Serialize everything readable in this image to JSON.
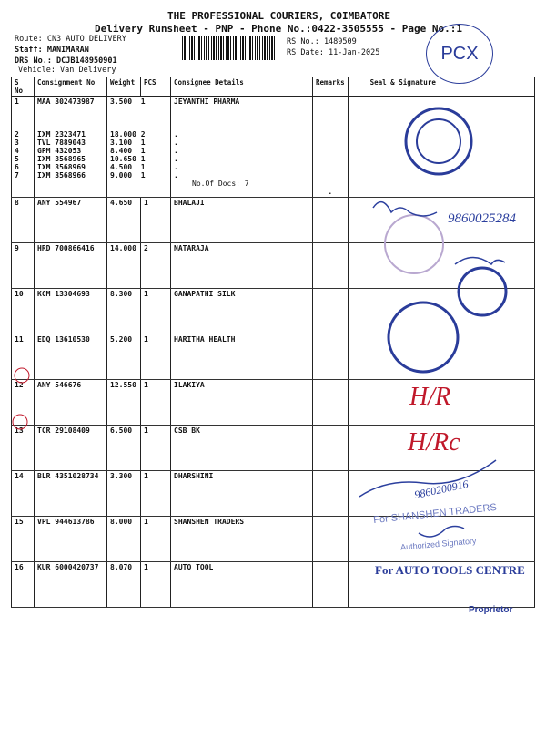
{
  "header": {
    "title": "THE PROFESSIONAL COURIERS, COIMBATORE",
    "subtitle": "Delivery Runsheet - PNP - Phone No.:0422-3505555 - Page No.:1",
    "route": "Route: CN3 AUTO DELIVERY",
    "staff": "Staff: MANIMARAN",
    "drs": "DRS No.: DCJB148950901",
    "vehicle": "Vehicle: Van Delivery",
    "rs_no": "RS No.: 1489509",
    "rs_date": "RS Date: 11-Jan-2025",
    "logo": "PCX"
  },
  "columns": [
    "S No",
    "Consignment No",
    "Weight",
    "PCS",
    "Consignee Details",
    "Remarks",
    "Seal & Signature"
  ],
  "group1": {
    "sno": [
      "1",
      "2",
      "3",
      "4",
      "5",
      "6",
      "7"
    ],
    "consignment": [
      "MAA 302473987",
      "IXM 2323471",
      "TVL 7889043",
      "GPM 432053",
      "IXM 3568965",
      "IXM 3568969",
      "IXM 3568966"
    ],
    "weight": [
      "3.500",
      "18.000",
      "3.100",
      "8.400",
      "10.650",
      "4.500",
      "9.000"
    ],
    "pcs": [
      "1",
      "2",
      "1",
      "1",
      "1",
      "1",
      "1"
    ],
    "consignee": "JEYANTHI PHARMA",
    "dots": [
      ".",
      ".",
      ".",
      ".",
      ".",
      "."
    ],
    "docs": "No.Of Docs: 7",
    "remark": "."
  },
  "rows": [
    {
      "sno": "8",
      "consignment": "ANY 554967",
      "weight": "4.650",
      "pcs": "1",
      "consignee": "BHALAJI"
    },
    {
      "sno": "9",
      "consignment": "HRD 700866416",
      "weight": "14.000",
      "pcs": "2",
      "consignee": "NATARAJA"
    },
    {
      "sno": "10",
      "consignment": "KCM 13304693",
      "weight": "8.300",
      "pcs": "1",
      "consignee": "GANAPATHI SILK"
    },
    {
      "sno": "11",
      "consignment": "EDQ 13610530",
      "weight": "5.200",
      "pcs": "1",
      "consignee": "HARITHA HEALTH"
    },
    {
      "sno": "12",
      "consignment": "ANY 546676",
      "weight": "12.550",
      "pcs": "1",
      "consignee": "ILAKIYA"
    },
    {
      "sno": "13",
      "consignment": "TCR 29108409",
      "weight": "6.500",
      "pcs": "1",
      "consignee": "CSB BK"
    },
    {
      "sno": "14",
      "consignment": "BLR 4351028734",
      "weight": "3.300",
      "pcs": "1",
      "consignee": "DHARSHINI"
    },
    {
      "sno": "15",
      "consignment": "VPL 944613786",
      "weight": "8.000",
      "pcs": "1",
      "consignee": "SHANSHEN TRADERS"
    },
    {
      "sno": "16",
      "consignment": "KUR 6000420737",
      "weight": "8.070",
      "pcs": "1",
      "consignee": "AUTO TOOL"
    }
  ],
  "annotations": {
    "phone1": "9860025284",
    "hr1": "H/R",
    "hr2": "H/Rc",
    "phone2": "9860200916",
    "stamp_shanshen": "For SHANSHEN TRADERS",
    "stamp_signatory": "Authorized Signatory",
    "stamp_autotool": "For AUTO TOOLS CENTRE",
    "stamp_proprietor": "Proprietor"
  },
  "colors": {
    "ink": "#111111",
    "stamp_blue": "#2a3c9a",
    "pen_red": "#c0182a",
    "pen_blue": "#2b3f9e"
  }
}
